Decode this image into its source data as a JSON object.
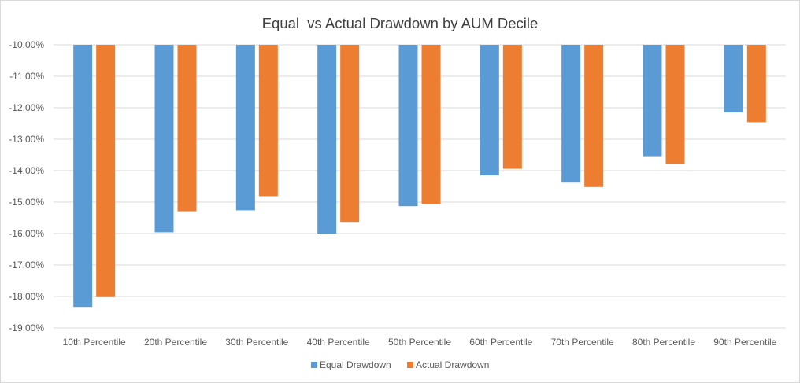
{
  "chart_data": {
    "type": "bar",
    "title": "Equal  vs Actual Drawdown by AUM Decile",
    "xlabel": "",
    "ylabel": "",
    "categories": [
      "10th Percentile",
      "20th Percentile",
      "30th Percentile",
      "40th Percentile",
      "50th Percentile",
      "60th Percentile",
      "70th Percentile",
      "80th Percentile",
      "90th Percentile"
    ],
    "series": [
      {
        "name": "Equal Drawdown",
        "color": "#5b9bd5",
        "values": [
          -18.33,
          -15.96,
          -15.26,
          -16.0,
          -15.13,
          -14.15,
          -14.38,
          -13.54,
          -12.15
        ]
      },
      {
        "name": "Actual Drawdown",
        "color": "#ed7d31",
        "values": [
          -18.02,
          -15.29,
          -14.81,
          -15.63,
          -15.06,
          -13.94,
          -14.52,
          -13.78,
          -12.46
        ]
      }
    ],
    "ylim": [
      -19.0,
      -10.0
    ],
    "yticks": [
      -10,
      -11,
      -12,
      -13,
      -14,
      -15,
      -16,
      -17,
      -18,
      -19
    ],
    "ytick_labels": [
      "-10.00%",
      "-11.00%",
      "-12.00%",
      "-13.00%",
      "-14.00%",
      "-15.00%",
      "-16.00%",
      "-17.00%",
      "-18.00%",
      "-19.00%"
    ],
    "grid": true,
    "legend": "bottom"
  }
}
